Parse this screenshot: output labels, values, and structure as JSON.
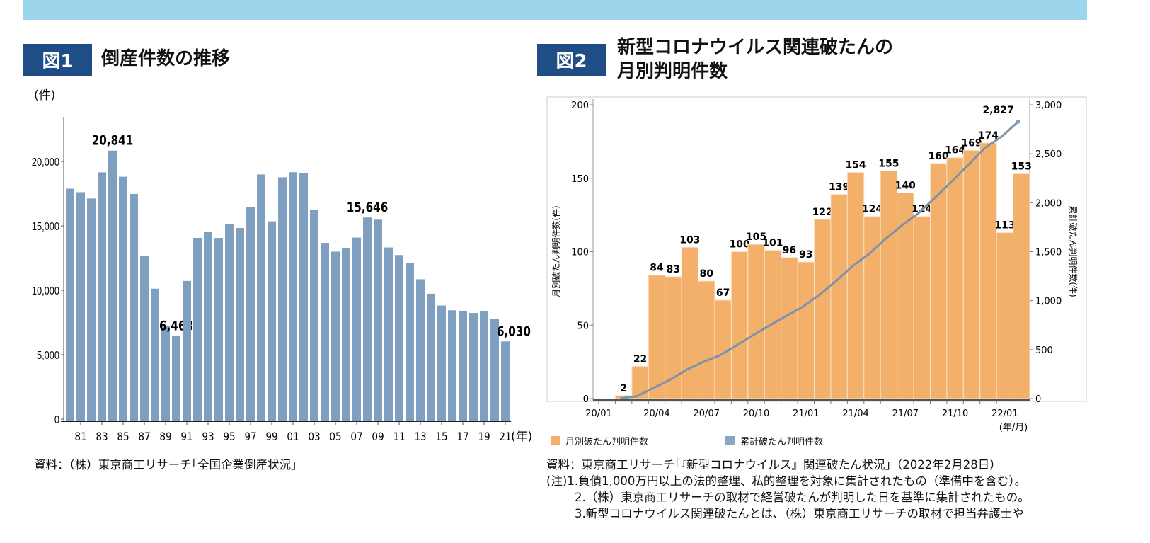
{
  "banner": {
    "color": "#9dd6ec"
  },
  "fig1": {
    "badge": "図1",
    "title": "倒産件数の推移",
    "unit": "(件)",
    "source": "資料：（株）東京商工リサーチ｢全国企業倒産状況」"
  },
  "fig2": {
    "badge": "図2",
    "title_line1": "新型コロナウイルス関連破たんの",
    "title_line2": "月別判明件数",
    "legend_monthly": "月別破たん判明件数",
    "legend_cumulative": "累計破たん判明件数",
    "source": "資料：東京商工リサーチ｢『新型コロナウイルス』関連破たん状況」（2022年2月28日）",
    "note1": "(注)1.負債1,000万円以上の法的整理、私的整理を対象に集計されたもの（準備中を含む）。",
    "note2": "2.（株）東京商工リサーチの取材で経営破たんが判明した日を基準に集計されたもの。",
    "note3": "3.新型コロナウイルス関連破たんとは、（株）東京商工リサーチの取材で担当弁護士や"
  },
  "colors": {
    "badge": "#1f4e86",
    "bar1": "#7f9fc0",
    "bar2": "#f3b06a",
    "line": "#7d92a8"
  },
  "chart_data": [
    {
      "type": "bar",
      "title": "倒産件数の推移",
      "ylabel": "(件)",
      "xlabel": "(年)",
      "ylim": [
        0,
        23000
      ],
      "yticks": [
        "0",
        "5,000",
        "10,000",
        "15,000",
        "20,000"
      ],
      "ytick_values": [
        0,
        5000,
        10000,
        15000,
        20000
      ],
      "x_tick_labels": [
        "81",
        "83",
        "85",
        "87",
        "89",
        "91",
        "93",
        "95",
        "97",
        "99",
        "01",
        "03",
        "05",
        "07",
        "09",
        "11",
        "13",
        "15",
        "17",
        "19",
        "21"
      ],
      "categories": [
        "80",
        "81",
        "82",
        "83",
        "84",
        "85",
        "86",
        "87",
        "88",
        "89",
        "90",
        "91",
        "92",
        "93",
        "94",
        "95",
        "96",
        "97",
        "98",
        "99",
        "00",
        "01",
        "02",
        "03",
        "04",
        "05",
        "06",
        "07",
        "08",
        "09",
        "10",
        "11",
        "12",
        "13",
        "14",
        "15",
        "16",
        "17",
        "18",
        "19",
        "20",
        "21"
      ],
      "values": [
        17884,
        17610,
        17122,
        19155,
        20841,
        18812,
        17476,
        12655,
        10122,
        7234,
        6468,
        10723,
        14069,
        14564,
        14061,
        15108,
        14834,
        16464,
        18988,
        15352,
        18769,
        19164,
        19087,
        16255,
        13679,
        12998,
        13245,
        14091,
        15646,
        15480,
        13321,
        12734,
        12124,
        10855,
        9731,
        8812,
        8446,
        8405,
        8235,
        8383,
        7773,
        6030
      ],
      "data_labels": {
        "84": "20,841",
        "90": "6,468",
        "08": "15,646",
        "21": "6,030"
      }
    },
    {
      "type": "bar+line",
      "title": "新型コロナウイルス関連破たんの月別判明件数",
      "ylabel_left": "月別破たん判明件数(件)",
      "ylabel_right": "累計破たん判明件数(件)",
      "xlabel": "(年/月)",
      "ylim_left": [
        0,
        200
      ],
      "ylim_right": [
        0,
        3000
      ],
      "yticks_left": [
        "0",
        "50",
        "100",
        "150",
        "200"
      ],
      "yticks_right": [
        "0",
        "500",
        "1,000",
        "1,500",
        "2,000",
        "2,500",
        "3,000"
      ],
      "x_tick_labels": [
        "20/01",
        "20/04",
        "20/07",
        "20/10",
        "21/01",
        "21/04",
        "21/07",
        "21/10",
        "22/01"
      ],
      "categories": [
        "20/01",
        "20/02",
        "20/03",
        "20/04",
        "20/05",
        "20/06",
        "20/07",
        "20/08",
        "20/09",
        "20/10",
        "20/11",
        "20/12",
        "21/01",
        "21/02",
        "21/03",
        "21/04",
        "21/05",
        "21/06",
        "21/07",
        "21/08",
        "21/09",
        "21/10",
        "21/11",
        "21/12",
        "22/01",
        "22/02"
      ],
      "series": [
        {
          "name": "月別破たん判明件数",
          "type": "bar",
          "axis": "left",
          "values": [
            null,
            2,
            22,
            84,
            83,
            103,
            80,
            67,
            100,
            105,
            101,
            96,
            93,
            122,
            139,
            154,
            124,
            155,
            140,
            124,
            160,
            164,
            169,
            174,
            113,
            153
          ]
        },
        {
          "name": "累計破たん判明件数",
          "type": "line",
          "axis": "right",
          "values": [
            null,
            2,
            24,
            108,
            191,
            294,
            374,
            441,
            541,
            646,
            747,
            843,
            936,
            1058,
            1197,
            1351,
            1475,
            1630,
            1770,
            1894,
            2054,
            2218,
            2387,
            2561,
            2674,
            2827
          ],
          "end_label": "2,827"
        }
      ],
      "legend": "bottom"
    }
  ]
}
